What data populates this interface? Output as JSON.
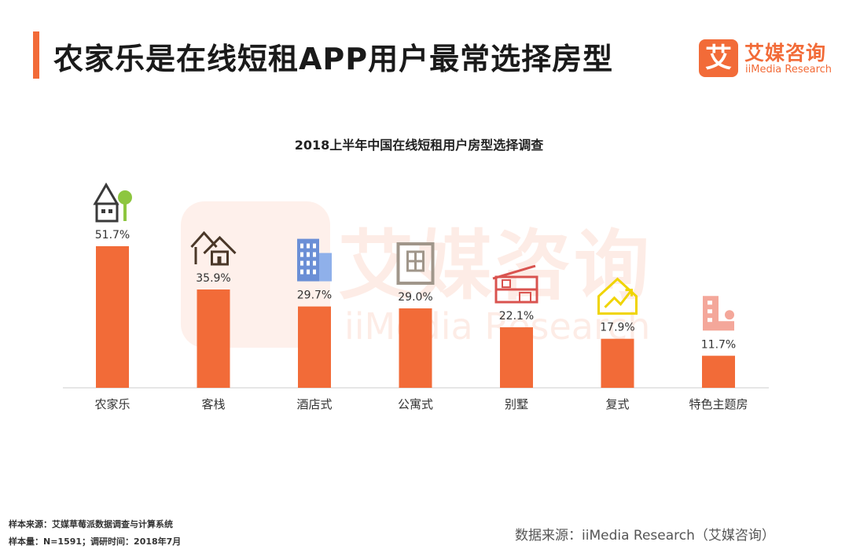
{
  "header": {
    "title": "农家乐是在线短租APP用户最常选择房型"
  },
  "logo": {
    "mark": "艾",
    "name_cn": "艾媒咨询",
    "name_en": "iiMedia Research"
  },
  "watermark": {
    "mark": "艾",
    "name_cn": "艾媒咨询",
    "name_en": "iiMedia Research"
  },
  "chart_data": {
    "type": "bar",
    "title": "2018上半年中国在线短租用户房型选择调查",
    "categories": [
      "农家乐",
      "客栈",
      "酒店式",
      "公寓式",
      "别墅",
      "复式",
      "特色主题房"
    ],
    "values": [
      51.7,
      35.9,
      29.7,
      29.0,
      22.1,
      17.9,
      11.7
    ],
    "labels": [
      "51.7%",
      "35.9%",
      "29.7%",
      "29.0%",
      "22.1%",
      "17.9%",
      "11.7%"
    ],
    "icons": [
      "farmhouse-icon",
      "inn-icon",
      "hotel-building-icon",
      "apartment-icon",
      "villa-icon",
      "duplex-icon",
      "theme-room-icon"
    ],
    "unit": "%",
    "xlabel": "",
    "ylabel": "",
    "ylim": [
      0,
      51.7
    ],
    "grid": false,
    "legend": "none",
    "colors": {
      "bar": "#f26b38",
      "axis": "#cccccc"
    }
  },
  "footer": {
    "sample_source": "样本来源：艾媒草莓派数据调查与计算系统",
    "sample_size": "样本量：N=1591；调研时间：2018年7月",
    "data_source": "数据来源：iiMedia Research（艾媒咨询）"
  }
}
